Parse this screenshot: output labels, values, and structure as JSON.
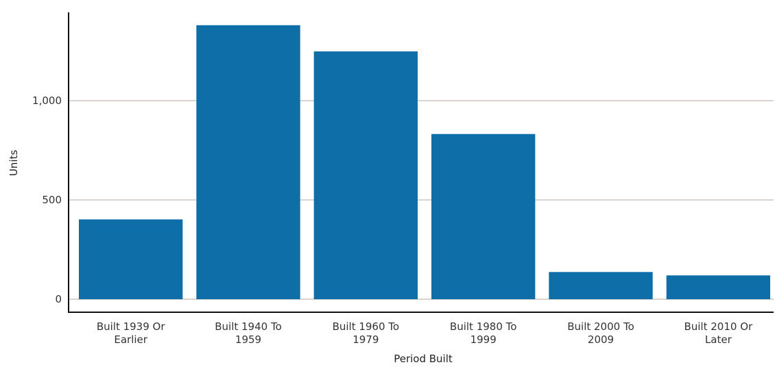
{
  "chart_data": {
    "type": "bar",
    "title": "",
    "xlabel": "Period Built",
    "ylabel": "Units",
    "categories": [
      [
        "Built 1939 Or",
        "Earlier"
      ],
      [
        "Built 1940 To",
        "1959"
      ],
      [
        "Built 1960 To",
        "1979"
      ],
      [
        "Built 1980 To",
        "1999"
      ],
      [
        "Built 2000 To",
        "2009"
      ],
      [
        "Built 2010 Or",
        "Later"
      ]
    ],
    "series": [
      {
        "values": [
          402,
          1380,
          1248,
          832,
          137,
          120
        ]
      }
    ],
    "ylim": [
      0,
      1450
    ],
    "yticks": [
      0,
      500,
      1000
    ],
    "ytick_labels": [
      "0",
      "500",
      "1,000"
    ],
    "grid": true,
    "legend": "none",
    "colors": {
      "bar": "#0e6ea8",
      "grid": "#b5a9a0",
      "axis": "#111111"
    }
  }
}
